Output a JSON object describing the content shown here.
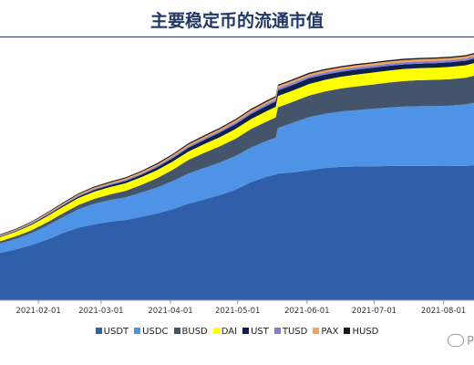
{
  "title": "主要稳定币的流通市值",
  "watermark": "P",
  "chart_data": {
    "type": "area",
    "stacked": true,
    "title": "主要稳定币的流通市值",
    "x_axis": "date",
    "x": [
      "2021-01-01",
      "2021-01-08",
      "2021-01-15",
      "2021-01-22",
      "2021-01-29",
      "2021-02-05",
      "2021-02-12",
      "2021-02-19",
      "2021-02-26",
      "2021-03-05",
      "2021-03-12",
      "2021-03-19",
      "2021-03-26",
      "2021-04-02",
      "2021-04-09",
      "2021-04-16",
      "2021-04-23",
      "2021-04-30",
      "2021-05-07",
      "2021-05-14",
      "2021-05-18",
      "2021-05-19",
      "2021-05-26",
      "2021-06-02",
      "2021-06-09",
      "2021-06-16",
      "2021-06-23",
      "2021-06-30",
      "2021-07-07",
      "2021-07-14",
      "2021-07-21",
      "2021-07-28",
      "2021-08-04",
      "2021-08-11",
      "2021-08-15"
    ],
    "xticks": [
      "2021-02-01",
      "2021-03-01",
      "2021-04-01",
      "2021-05-01",
      "2021-06-01",
      "2021-07-01",
      "2021-08-01"
    ],
    "series": [
      {
        "name": "USDT",
        "color": "#2e5fa8",
        "values": [
          20.5,
          21,
          21.8,
          23.5,
          25.5,
          28,
          31,
          33.5,
          35,
          36.2,
          37,
          38.5,
          40,
          42,
          44.5,
          46.5,
          48.5,
          51,
          54.5,
          57,
          58,
          58.5,
          59,
          60,
          61,
          61.5,
          61.7,
          61.8,
          61.9,
          62,
          62,
          61.9,
          61.9,
          62,
          62.2
        ]
      },
      {
        "name": "USDC",
        "color": "#4f93e6",
        "values": [
          4,
          4.2,
          4.4,
          4.8,
          5.5,
          6.5,
          7.3,
          8.5,
          9.5,
          10,
          10.5,
          11.2,
          12,
          13,
          14,
          14.5,
          15,
          15.5,
          16,
          16.5,
          17,
          21,
          23,
          24.5,
          25,
          25.6,
          26,
          26.5,
          27,
          27.3,
          27.5,
          27.7,
          27.9,
          28.4,
          29
        ]
      },
      {
        "name": "BUSD",
        "color": "#44546a",
        "values": [
          1,
          1,
          1.1,
          1.2,
          1.3,
          1.5,
          1.8,
          2,
          2.3,
          2.6,
          3,
          3.5,
          4.3,
          5.2,
          6.2,
          7,
          7.5,
          8,
          8.5,
          9,
          9.3,
          9.5,
          9.7,
          10,
          10.3,
          10.6,
          10.9,
          11.2,
          11.5,
          11.8,
          12,
          12.1,
          12.2,
          12.3,
          12.5
        ]
      },
      {
        "name": "DAI",
        "color": "#ffff00",
        "values": [
          1.3,
          1.5,
          1.8,
          2.1,
          2.5,
          2.8,
          3,
          3.2,
          3.3,
          3.4,
          3.5,
          3.6,
          3.7,
          3.8,
          3.9,
          4,
          4.2,
          4.5,
          4.6,
          4.8,
          4.9,
          5.2,
          5.2,
          5.3,
          5.4,
          5.4,
          5.5,
          5.5,
          5.5,
          5.6,
          5.6,
          5.6,
          5.7,
          5.7,
          5.8
        ]
      },
      {
        "name": "UST",
        "color": "#0c1f4d",
        "values": [
          0.2,
          0.2,
          0.3,
          0.3,
          0.4,
          0.5,
          0.6,
          0.7,
          0.8,
          0.9,
          1,
          1.1,
          1.3,
          1.5,
          1.7,
          1.9,
          2.1,
          2.2,
          2.3,
          2.4,
          2.5,
          2.6,
          2.6,
          2.6,
          2.4,
          2.3,
          2.3,
          2.2,
          2.2,
          2.1,
          2.1,
          2.1,
          2.1,
          2.1,
          2.1
        ]
      },
      {
        "name": "TUSD",
        "color": "#7f7fd5",
        "values": [
          0.3,
          0.3,
          0.3,
          0.35,
          0.4,
          0.4,
          0.45,
          0.5,
          0.5,
          0.55,
          0.6,
          0.6,
          0.65,
          0.7,
          0.75,
          0.8,
          0.8,
          0.85,
          0.9,
          0.9,
          0.95,
          1,
          1,
          1,
          1,
          1,
          1,
          1,
          1,
          1,
          1,
          1,
          1,
          1,
          1
        ]
      },
      {
        "name": "PAX",
        "color": "#f4a259",
        "values": [
          0.35,
          0.35,
          0.4,
          0.4,
          0.45,
          0.5,
          0.5,
          0.55,
          0.6,
          0.6,
          0.65,
          0.7,
          0.7,
          0.75,
          0.8,
          0.8,
          0.85,
          0.9,
          0.9,
          0.95,
          0.95,
          1,
          1,
          1,
          1,
          1,
          1,
          1,
          1,
          1,
          1,
          1,
          1,
          1,
          1
        ]
      },
      {
        "name": "HUSD",
        "color": "#1a1a1a",
        "values": [
          0.3,
          0.3,
          0.3,
          0.35,
          0.35,
          0.4,
          0.4,
          0.45,
          0.45,
          0.5,
          0.5,
          0.5,
          0.55,
          0.55,
          0.55,
          0.6,
          0.6,
          0.6,
          0.6,
          0.6,
          0.6,
          0.6,
          0.6,
          0.6,
          0.6,
          0.6,
          0.6,
          0.6,
          0.6,
          0.6,
          0.6,
          0.6,
          0.6,
          0.6,
          0.6
        ]
      }
    ],
    "ylim": [
      0,
      120
    ],
    "grid": false,
    "legend": "bottom"
  }
}
